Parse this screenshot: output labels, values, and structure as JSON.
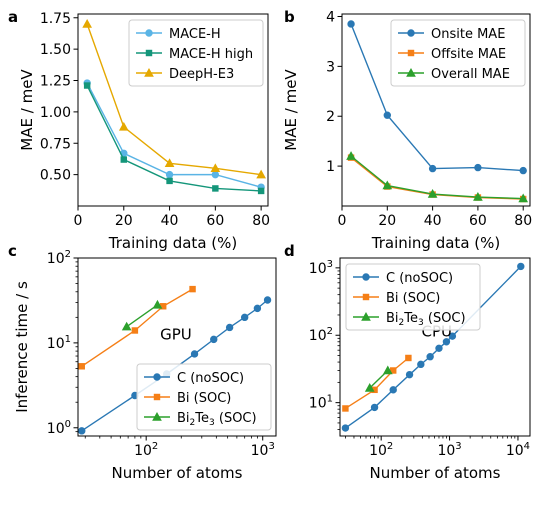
{
  "chart_data": [
    {
      "panel_label": "a",
      "type": "line",
      "xlabel": "Training data (%)",
      "ylabel": "MAE / meV",
      "xlim": [
        0,
        83
      ],
      "ylim": [
        0.25,
        1.78
      ],
      "xscale": "linear",
      "yscale": "linear",
      "xticks": [
        0,
        20,
        40,
        60,
        80
      ],
      "xtick_labels": [
        "0",
        "20",
        "40",
        "60",
        "80"
      ],
      "yticks": [
        0.5,
        0.75,
        1.0,
        1.25,
        1.5,
        1.75
      ],
      "ytick_labels": [
        "0.50",
        "0.75",
        "1.00",
        "1.25",
        "1.50",
        "1.75"
      ],
      "grid": false,
      "legend_position": "top-right",
      "series": [
        {
          "name": "MACE-H",
          "x": [
            4,
            20,
            40,
            60,
            80
          ],
          "y": [
            1.23,
            0.67,
            0.5,
            0.5,
            0.4
          ],
          "color": "#5ab4e5",
          "marker": "circle"
        },
        {
          "name": "MACE-H high",
          "x": [
            4,
            20,
            40,
            60,
            80
          ],
          "y": [
            1.21,
            0.62,
            0.45,
            0.39,
            0.37
          ],
          "color": "#14967a",
          "marker": "square"
        },
        {
          "name": "DeepH-E3",
          "x": [
            4,
            20,
            40,
            60,
            80
          ],
          "y": [
            1.7,
            0.88,
            0.59,
            0.55,
            0.5
          ],
          "color": "#e5a800",
          "marker": "triangle"
        }
      ]
    },
    {
      "panel_label": "b",
      "type": "line",
      "xlabel": "Training data (%)",
      "ylabel": "MAE / meV",
      "xlim": [
        0,
        83
      ],
      "ylim": [
        0.2,
        4.05
      ],
      "xscale": "linear",
      "yscale": "linear",
      "xticks": [
        0,
        20,
        40,
        60,
        80
      ],
      "xtick_labels": [
        "0",
        "20",
        "40",
        "60",
        "80"
      ],
      "yticks": [
        1,
        2,
        3,
        4
      ],
      "ytick_labels": [
        "1",
        "2",
        "3",
        "4"
      ],
      "grid": false,
      "legend_position": "top-right",
      "series": [
        {
          "name": "Onsite MAE",
          "x": [
            4,
            20,
            40,
            60,
            80
          ],
          "y": [
            3.85,
            2.02,
            0.95,
            0.97,
            0.91
          ],
          "color": "#2a78b4",
          "marker": "circle"
        },
        {
          "name": "Offsite MAE",
          "x": [
            4,
            20,
            40,
            60,
            80
          ],
          "y": [
            1.17,
            0.59,
            0.43,
            0.37,
            0.34
          ],
          "color": "#f57f17",
          "marker": "square"
        },
        {
          "name": "Overall MAE",
          "x": [
            4,
            20,
            40,
            60,
            80
          ],
          "y": [
            1.2,
            0.61,
            0.44,
            0.38,
            0.35
          ],
          "color": "#2ca02c",
          "marker": "triangle"
        }
      ]
    },
    {
      "panel_label": "c",
      "type": "line",
      "xlabel": "Number of atoms",
      "ylabel": "Inference time / s",
      "annotation": "GPU",
      "annotation_pos": [
        180,
        11
      ],
      "xlim": [
        26,
        1300
      ],
      "ylim": [
        0.8,
        100
      ],
      "xscale": "log",
      "yscale": "log",
      "xticks": [
        100,
        1000
      ],
      "xtick_labels": [
        "10^2",
        "10^3"
      ],
      "yticks": [
        1,
        10,
        100
      ],
      "ytick_labels": [
        "10^0",
        "10^1",
        "10^2"
      ],
      "grid": false,
      "legend_position": "bottom-right",
      "series": [
        {
          "name": "C (noSOC)",
          "x": [
            28,
            80,
            150,
            260,
            380,
            520,
            700,
            900,
            1100
          ],
          "y": [
            0.92,
            2.4,
            4.3,
            7.4,
            11,
            15.2,
            20,
            25.5,
            32
          ],
          "color": "#2a78b4",
          "marker": "circle"
        },
        {
          "name": "Bi (SOC)",
          "x": [
            28,
            80,
            140,
            250
          ],
          "y": [
            5.3,
            14,
            27,
            43
          ],
          "color": "#f57f17",
          "marker": "square"
        },
        {
          "name": "Bi_2Te_3 (SOC)",
          "x": [
            68,
            125
          ],
          "y": [
            15.5,
            28
          ],
          "color": "#2ca02c",
          "marker": "triangle"
        }
      ]
    },
    {
      "panel_label": "d",
      "type": "line",
      "xlabel": "Number of atoms",
      "ylabel": "",
      "annotation": "CPU",
      "annotation_pos": [
        650,
        95
      ],
      "xlim": [
        25,
        15000
      ],
      "ylim": [
        3.2,
        1400
      ],
      "xscale": "log",
      "yscale": "log",
      "xticks": [
        100,
        1000,
        10000
      ],
      "xtick_labels": [
        "10^2",
        "10^3",
        "10^4"
      ],
      "yticks": [
        10,
        100,
        1000
      ],
      "ytick_labels": [
        "10^1",
        "10^2",
        "10^3"
      ],
      "grid": false,
      "legend_position": "top-left",
      "series": [
        {
          "name": "C (noSOC)",
          "x": [
            30,
            80,
            150,
            260,
            380,
            520,
            700,
            900,
            1100,
            11000
          ],
          "y": [
            4.2,
            8.5,
            15.5,
            26,
            37,
            48,
            64,
            80,
            97,
            1050
          ],
          "color": "#2a78b4",
          "marker": "circle"
        },
        {
          "name": "Bi (SOC)",
          "x": [
            30,
            80,
            150,
            250
          ],
          "y": [
            8.2,
            15.5,
            30,
            46
          ],
          "color": "#f57f17",
          "marker": "square"
        },
        {
          "name": "Bi_2Te_3 (SOC)",
          "x": [
            68,
            125
          ],
          "y": [
            16.5,
            30
          ],
          "color": "#2ca02c",
          "marker": "triangle"
        }
      ]
    }
  ]
}
